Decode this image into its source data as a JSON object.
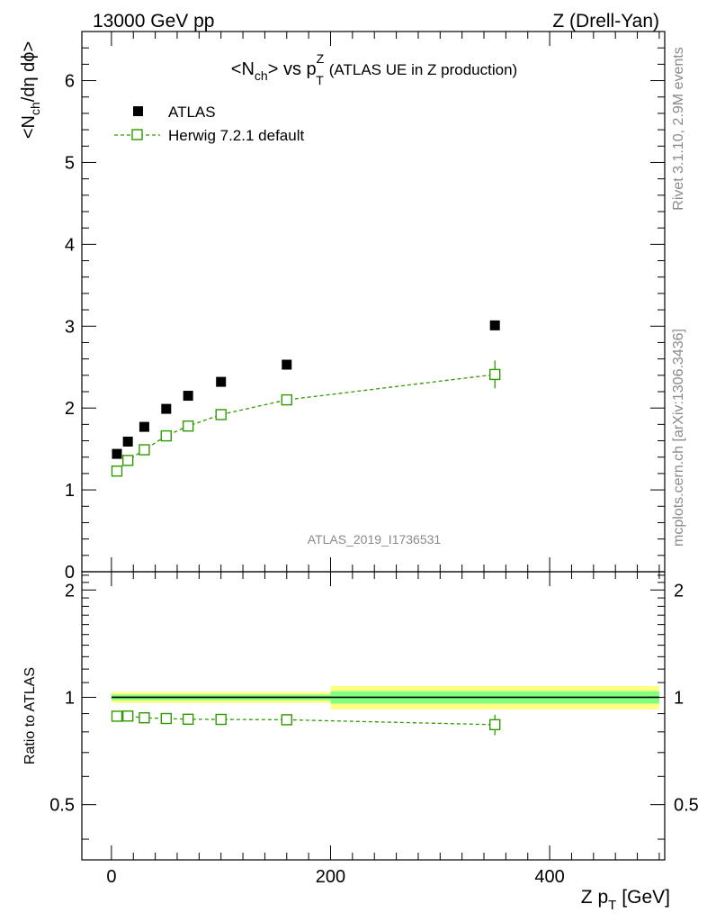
{
  "header": {
    "left": "13000 GeV pp",
    "right": "Z (Drell-Yan)"
  },
  "side_labels": {
    "rivet": "Rivet 3.1.10,  2.9M events",
    "mcplots": "mcplots.cern.ch [arXiv:1306.3436]"
  },
  "colors": {
    "data": "#000000",
    "mc": "#2f9a00",
    "band_outer": "#ffff80",
    "band_inner": "#80ff80"
  },
  "chart_data": [
    {
      "type": "scatter",
      "title_parts": {
        "a": "<N",
        "a_sub": "ch",
        "b": "> vs p",
        "b_sup": "Z",
        "b_sub": "T",
        "c": "(ATLAS UE in Z production)"
      },
      "ylabel_parts": {
        "a": "<N",
        "a_sub": "ch",
        "b": "/dη dϕ>"
      },
      "xlim": [
        -27,
        505
      ],
      "ylim": [
        0,
        6.6
      ],
      "yticks": [
        {
          "v": 0,
          "label": "0"
        },
        {
          "v": 1,
          "label": "1"
        },
        {
          "v": 2,
          "label": "2"
        },
        {
          "v": 3,
          "label": "3"
        },
        {
          "v": 4,
          "label": "4"
        },
        {
          "v": 5,
          "label": "5"
        },
        {
          "v": 6,
          "label": "6"
        }
      ],
      "watermark": "ATLAS_2019_I1736531",
      "legend_position": "top-left",
      "series": [
        {
          "name": "ATLAS",
          "marker": "filled-square",
          "x": [
            5,
            15,
            30,
            50,
            70,
            100,
            160,
            350
          ],
          "y": [
            1.44,
            1.59,
            1.77,
            1.99,
            2.15,
            2.32,
            2.53,
            3.01
          ]
        },
        {
          "name": "Herwig 7.2.1 default",
          "marker": "open-square",
          "line": "dashed",
          "x": [
            5,
            15,
            30,
            50,
            70,
            100,
            160,
            350
          ],
          "y": [
            1.23,
            1.36,
            1.49,
            1.66,
            1.78,
            1.92,
            2.1,
            2.41
          ],
          "yerr": [
            0.02,
            0.02,
            0.02,
            0.02,
            0.02,
            0.02,
            0.04,
            0.17
          ]
        }
      ]
    },
    {
      "type": "scatter",
      "ylabel": "Ratio to ATLAS",
      "xlabel_parts": {
        "a": "Z p",
        "a_sub": "T",
        "b": "[GeV]"
      },
      "xlim": [
        -27,
        505
      ],
      "ylim": [
        0.35,
        2.25
      ],
      "yscale": "log",
      "yticks": [
        {
          "v": 0.5,
          "label": "0.5"
        },
        {
          "v": 1,
          "label": "1"
        },
        {
          "v": 2,
          "label": "2"
        }
      ],
      "xticks": [
        {
          "v": 0,
          "label": "0"
        },
        {
          "v": 200,
          "label": "200"
        },
        {
          "v": 400,
          "label": "400"
        }
      ],
      "reference_band": {
        "edges": [
          0,
          200,
          500
        ],
        "outer_rel": [
          0.035,
          0.075
        ],
        "inner_rel": [
          0.018,
          0.04
        ]
      },
      "series": [
        {
          "name": "Herwig 7.2.1 default",
          "marker": "open-square",
          "line": "dashed",
          "x": [
            5,
            15,
            30,
            50,
            70,
            100,
            160,
            350
          ],
          "y": [
            0.885,
            0.886,
            0.876,
            0.872,
            0.868,
            0.867,
            0.865,
            0.838
          ],
          "yerr": [
            0.012,
            0.012,
            0.012,
            0.012,
            0.012,
            0.012,
            0.014,
            0.055
          ]
        }
      ]
    }
  ]
}
